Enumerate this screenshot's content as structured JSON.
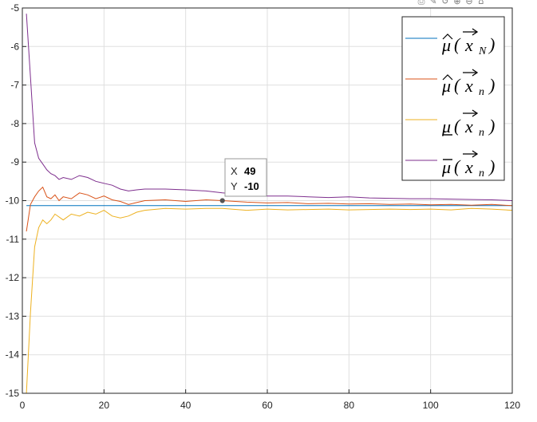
{
  "toolbar": {
    "buttons": [
      {
        "name": "export-icon",
        "glyph": "⎙"
      },
      {
        "name": "brush-icon",
        "glyph": "✎"
      },
      {
        "name": "rotate-icon",
        "glyph": "↺"
      },
      {
        "name": "zoom-in-icon",
        "glyph": "⊕"
      },
      {
        "name": "zoom-out-icon",
        "glyph": "⊖"
      },
      {
        "name": "home-icon",
        "glyph": "⌂"
      }
    ]
  },
  "chart_data": {
    "type": "line",
    "title": "",
    "xlabel": "",
    "ylabel": "",
    "xlim": [
      0,
      120
    ],
    "ylim": [
      -15,
      -5
    ],
    "xticks": [
      0,
      20,
      40,
      60,
      80,
      100,
      120
    ],
    "yticks": [
      -15,
      -14,
      -13,
      -12,
      -11,
      -10,
      -9,
      -8,
      -7,
      -6,
      -5
    ],
    "grid": true,
    "legend_position": "top-right",
    "series": [
      {
        "legend": {
          "base": "μ",
          "accent": "hat",
          "sub": "N"
        },
        "color": "#0072BD",
        "x": [
          1,
          120
        ],
        "y": [
          -10.13,
          -10.13
        ]
      },
      {
        "legend": {
          "base": "μ",
          "accent": "hat",
          "sub": "n"
        },
        "color": "#D95319",
        "x": [
          1,
          2,
          3,
          4,
          5,
          6,
          7,
          8,
          9,
          10,
          12,
          14,
          16,
          18,
          20,
          22,
          24,
          26,
          28,
          30,
          35,
          40,
          45,
          49,
          55,
          60,
          65,
          70,
          75,
          80,
          85,
          90,
          95,
          100,
          105,
          110,
          115,
          120
        ],
        "y": [
          -10.8,
          -10.1,
          -9.9,
          -9.75,
          -9.65,
          -9.9,
          -9.95,
          -9.85,
          -10.0,
          -9.9,
          -9.95,
          -9.8,
          -9.85,
          -9.95,
          -9.88,
          -9.98,
          -10.02,
          -10.1,
          -10.05,
          -10.0,
          -9.98,
          -10.02,
          -9.98,
          -10.0,
          -10.04,
          -10.06,
          -10.05,
          -10.08,
          -10.07,
          -10.09,
          -10.08,
          -10.1,
          -10.09,
          -10.11,
          -10.1,
          -10.12,
          -10.1,
          -10.13
        ]
      },
      {
        "legend": {
          "base": "μ",
          "accent": "underline",
          "sub": "n"
        },
        "color": "#EDB120",
        "x": [
          1,
          2,
          3,
          4,
          5,
          6,
          7,
          8,
          10,
          12,
          14,
          16,
          18,
          20,
          22,
          24,
          26,
          28,
          30,
          35,
          40,
          45,
          49,
          55,
          60,
          65,
          70,
          75,
          80,
          85,
          90,
          95,
          100,
          105,
          110,
          115,
          120
        ],
        "y": [
          -15.0,
          -12.9,
          -11.2,
          -10.7,
          -10.5,
          -10.6,
          -10.5,
          -10.35,
          -10.5,
          -10.35,
          -10.4,
          -10.3,
          -10.35,
          -10.25,
          -10.4,
          -10.45,
          -10.4,
          -10.3,
          -10.25,
          -10.2,
          -10.22,
          -10.2,
          -10.2,
          -10.25,
          -10.22,
          -10.24,
          -10.23,
          -10.22,
          -10.24,
          -10.23,
          -10.22,
          -10.23,
          -10.22,
          -10.24,
          -10.2,
          -10.22,
          -10.25
        ]
      },
      {
        "legend": {
          "base": "μ",
          "accent": "overline",
          "sub": "n"
        },
        "color": "#7E2F8E",
        "x": [
          1,
          2,
          3,
          4,
          5,
          6,
          7,
          8,
          9,
          10,
          12,
          14,
          16,
          18,
          20,
          22,
          24,
          26,
          28,
          30,
          35,
          40,
          45,
          49,
          55,
          60,
          65,
          70,
          75,
          80,
          85,
          90,
          95,
          100,
          105,
          110,
          115,
          120
        ],
        "y": [
          -5.15,
          -6.8,
          -8.5,
          -8.9,
          -9.05,
          -9.2,
          -9.3,
          -9.35,
          -9.45,
          -9.4,
          -9.45,
          -9.35,
          -9.4,
          -9.5,
          -9.55,
          -9.6,
          -9.7,
          -9.75,
          -9.72,
          -9.7,
          -9.7,
          -9.72,
          -9.75,
          -9.8,
          -9.85,
          -9.88,
          -9.88,
          -9.9,
          -9.92,
          -9.9,
          -9.93,
          -9.94,
          -9.95,
          -9.95,
          -9.96,
          -9.97,
          -9.98,
          -10.0
        ]
      }
    ],
    "datatip": {
      "x_label": "X",
      "x_value": "49",
      "y_label": "Y",
      "y_value": "-10",
      "x": 49,
      "y": -10
    }
  }
}
